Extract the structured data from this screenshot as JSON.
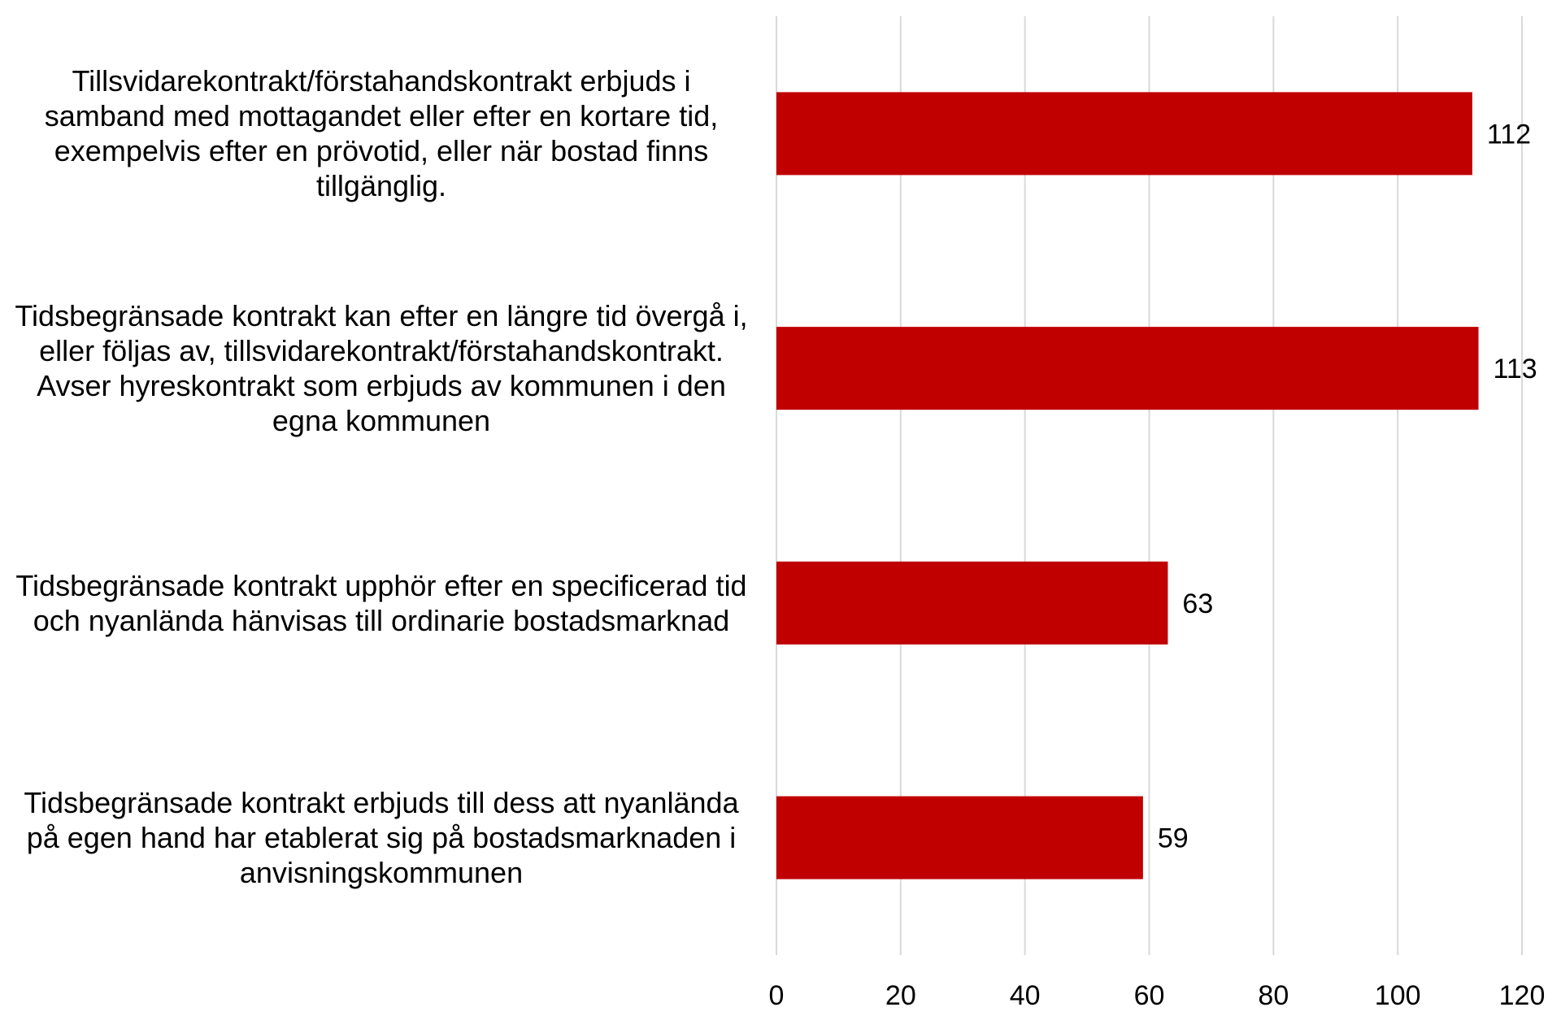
{
  "chart_data": {
    "type": "bar",
    "orientation": "horizontal",
    "title": "",
    "xlabel": "",
    "ylabel": "",
    "categories": [
      "Tillsvidarekontrakt/förstahandskontrakt erbjuds i samband med mottagandet eller efter en kortare tid, exempelvis efter en prövotid, eller när bostad finns tillgänglig.",
      "Tidsbegränsade kontrakt kan efter en längre tid övergå i, eller följas av, tillsvidarekontrakt/förstahandskontrakt. Avser hyreskontrakt som erbjuds av kommunen i den egna kommunen",
      "Tidsbegränsade kontrakt upphör efter en specificerad tid och nyanlända hänvisas till ordinarie bostadsmarknad",
      "Tidsbegränsade kontrakt erbjuds till dess att nyanlända på egen hand har etablerat sig på bostadsmarknaden i anvisningskommunen"
    ],
    "values": [
      112,
      113,
      63,
      59
    ],
    "data_labels": [
      "112",
      "113",
      "63",
      "59"
    ],
    "xlim": [
      0,
      120
    ],
    "x_ticks": [
      0,
      20,
      40,
      60,
      80,
      100,
      120
    ],
    "x_tick_labels": [
      "0",
      "20",
      "40",
      "60",
      "80",
      "100",
      "120"
    ],
    "grid": "vertical",
    "legend": "none",
    "colors": {
      "bar": "#c00000",
      "grid": "#d9d9d9",
      "text": "#000000"
    }
  }
}
